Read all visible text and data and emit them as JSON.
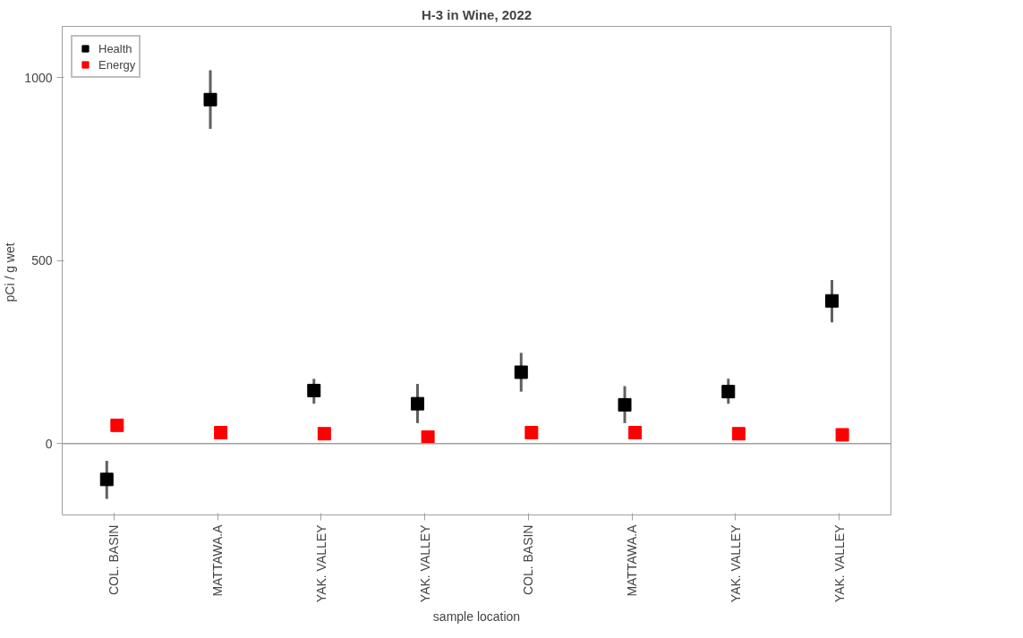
{
  "chart_data": {
    "type": "scatter",
    "title": "H-3 in Wine, 2022",
    "xlabel": "sample location",
    "ylabel": "pCi / g  wet",
    "categories": [
      "COL. BASIN",
      "MATTAWA.A",
      "YAK. VALLEY",
      "YAK. VALLEY",
      "COL. BASIN",
      "MATTAWA.A",
      "YAK. VALLEY",
      "YAK. VALLEY"
    ],
    "series": [
      {
        "name": "Health",
        "color": "#000000",
        "values": [
          -98,
          940,
          145,
          109,
          195,
          106,
          142,
          390
        ],
        "errors": [
          [
            -151,
            -47
          ],
          [
            860,
            1020
          ],
          [
            109,
            177
          ],
          [
            56,
            163
          ],
          [
            142,
            248
          ],
          [
            56,
            157
          ],
          [
            109,
            177
          ],
          [
            331,
            447
          ]
        ]
      },
      {
        "name": "Energy",
        "color": "#ff0000",
        "values": [
          50,
          30,
          27,
          18,
          30,
          30,
          27,
          24
        ]
      }
    ],
    "ylim": [
      -195,
      1140
    ],
    "yticks": [
      0,
      500,
      1000
    ],
    "grid": false,
    "legend": "top left",
    "marker": "square",
    "ref_lines": [
      {
        "axis": "y",
        "value": 0,
        "label": null,
        "color": "#a0a0a0"
      }
    ]
  }
}
